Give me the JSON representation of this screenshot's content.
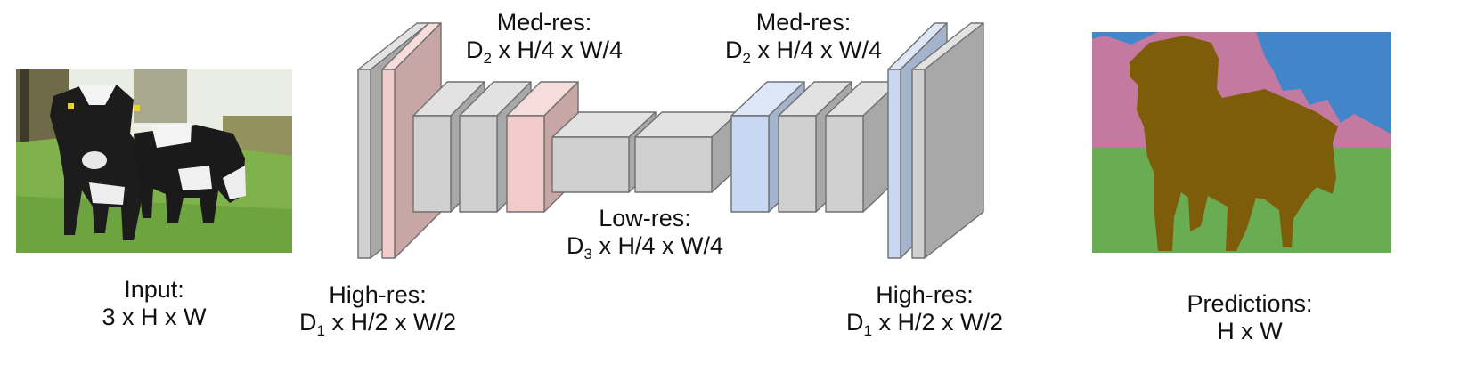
{
  "colors": {
    "gray_front": "#d0d0d0",
    "gray_side": "#a8a8a8",
    "gray_top": "#e2e2e2",
    "pink_front": "#f2cbcb",
    "pink_side": "#c8a6a6",
    "pink_top": "#f7dcdc",
    "blue_front": "#c8d8f2",
    "blue_side": "#a4b4cc",
    "blue_top": "#dde7f7",
    "edge": "#707070",
    "seg_sky": "#4285c8",
    "seg_background": "#c47aa0",
    "seg_grass": "#6aac52",
    "seg_cow": "#7d5c0a"
  },
  "input": {
    "label_line1": "Input:",
    "label_line2": "3 x H x W"
  },
  "output": {
    "label_line1": "Predictions:",
    "label_line2": "H x W"
  },
  "stages": {
    "enc_high": {
      "line1": "High-res:",
      "pre": "D",
      "sub": "1",
      "post": " x H/2 x W/2"
    },
    "enc_med": {
      "line1": "Med-res:",
      "pre": "D",
      "sub": "2",
      "post": " x H/4 x W/4"
    },
    "low": {
      "line1": "Low-res:",
      "pre": "D",
      "sub": "3",
      "post": " x H/4 x W/4"
    },
    "dec_med": {
      "line1": "Med-res:",
      "pre": "D",
      "sub": "2",
      "post": " x H/4 x W/4"
    },
    "dec_high": {
      "line1": "High-res:",
      "pre": "D",
      "sub": "1",
      "post": " x H/2 x W/2"
    }
  }
}
